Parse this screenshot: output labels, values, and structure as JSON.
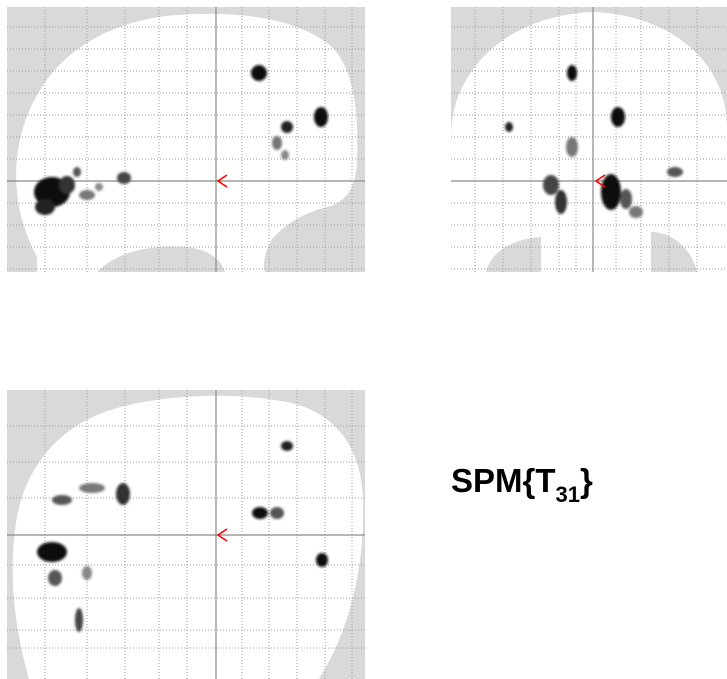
{
  "stat_label": {
    "prefix": "SPM{T",
    "subscript": "31",
    "suffix": "}"
  },
  "colors": {
    "background": "#ffffff",
    "outside_brain": "#d9d9d9",
    "grid": "#9a9a9a",
    "axis": "#8a8a8a",
    "cursor": "#ff0000",
    "blob_dark": "#111111",
    "blob_light": "#777777"
  },
  "views": [
    "sagittal",
    "coronal",
    "axial"
  ]
}
